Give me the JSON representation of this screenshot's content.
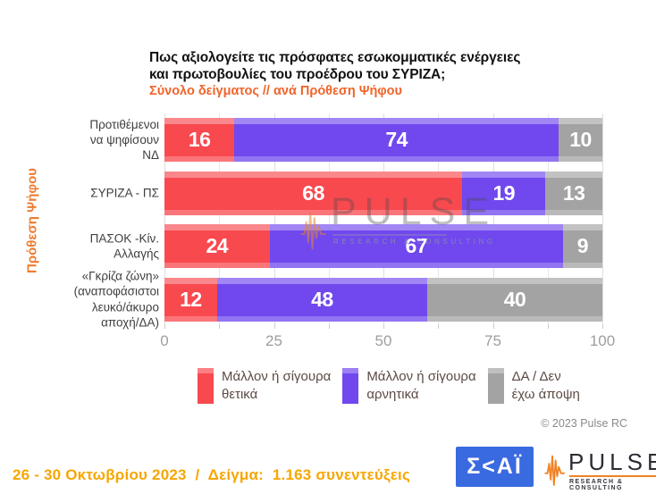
{
  "header": {
    "title_lines": [
      "Πως αξιολογείτε τις πρόσφατες εσωκομματικές ενέργειες",
      "και πρωτοβουλίες του προέδρου του ΣΥΡΙΖΑ;"
    ],
    "subtitle": "Σύνολο δείγματος // ανά Πρόθεση Ψήφου"
  },
  "chart_data": {
    "type": "bar",
    "orientation": "horizontal",
    "stacked": true,
    "title": "Πως αξιολογείτε τις πρόσφατες εσωκομματικές ενέργειες και πρωτοβουλίες του προέδρου του ΣΥΡΙΖΑ;",
    "subtitle": "Σύνολο δείγματος // ανά Πρόθεση Ψήφου",
    "ylabel": "Πρόθεση Ψήφου",
    "categories": [
      "Προτιθέμενοι\nνα ψηφίσουν\nΝΔ",
      "ΣΥΡΙΖΑ - ΠΣ",
      "ΠΑΣΟΚ -Κίν.\nΑλλαγής",
      "«Γκρίζα ζώνη»\n(αναποφάσιστοι\nλευκό/άκυρο\nαποχή/ΔΑ)"
    ],
    "series": [
      {
        "name": "Μάλλον ή σίγουρα\nθετικά",
        "color": "#f8494f",
        "values": [
          16,
          68,
          24,
          12
        ]
      },
      {
        "name": "Μάλλον ή σίγουρα\nαρνητικά",
        "color": "#7048ee",
        "values": [
          74,
          19,
          67,
          48
        ]
      },
      {
        "name": "ΔΑ / Δεν\nέχω άποψη",
        "color": "#a3a3a3",
        "values": [
          10,
          13,
          9,
          40
        ]
      }
    ],
    "xlim": [
      0,
      100
    ],
    "x_ticks": [
      0,
      25,
      50,
      75,
      100
    ],
    "minor_tick_step": 12.5,
    "grid": true,
    "legend_position": "bottom"
  },
  "watermark": {
    "brand": "PULSE",
    "tagline": "RESEARCH & CONSULTING"
  },
  "footnotes": {
    "copyright": "© 2023 Pulse RC",
    "sample_note": "26 - 30 Οκτωβρίου 2023  /  Δείγμα:  1.163 συνεντεύξεις"
  },
  "logos": {
    "skai_text": "Σ<ΑΪ",
    "pulse_brand": "PULSE",
    "pulse_tagline": "RESEARCH & CONSULTING"
  },
  "colors": {
    "positive": "#f8494f",
    "negative": "#7048ee",
    "neutral": "#a3a3a3",
    "accent_orange": "#f0642a",
    "footer_amber": "#f7a600",
    "skai_blue": "#3a6ae0",
    "pulse_orange": "#f08223"
  }
}
